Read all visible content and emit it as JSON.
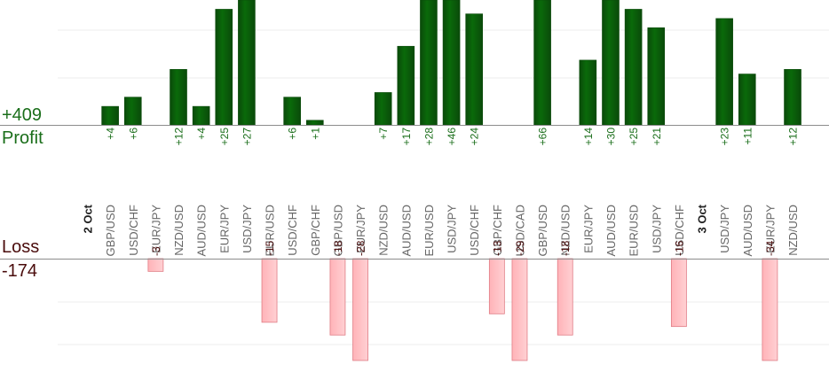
{
  "chart_data": {
    "type": "bar",
    "profit": {
      "total": "+409",
      "label": "Profit",
      "color": "#0a6a0a",
      "color_dark": "#0a4a0a"
    },
    "loss": {
      "total": "-174",
      "label": "Loss",
      "color": "#ffb3b8",
      "color_border": "#e07c85"
    },
    "categories": [
      {
        "kind": "date",
        "label": "2 Oct"
      },
      {
        "kind": "pair",
        "label": "GBP/USD",
        "value": 4
      },
      {
        "kind": "pair",
        "label": "USD/CHF",
        "value": 6
      },
      {
        "kind": "pair",
        "label": "EUR/JPY",
        "value": -3
      },
      {
        "kind": "pair",
        "label": "NZD/USD",
        "value": 12
      },
      {
        "kind": "pair",
        "label": "AUD/USD",
        "value": 4
      },
      {
        "kind": "pair",
        "label": "EUR/JPY",
        "value": 25
      },
      {
        "kind": "pair",
        "label": "USD/JPY",
        "value": 27
      },
      {
        "kind": "pair",
        "label": "EUR/USD",
        "value": -15
      },
      {
        "kind": "pair",
        "label": "USD/CHF",
        "value": 6
      },
      {
        "kind": "pair",
        "label": "GBP/CHF",
        "value": 1
      },
      {
        "kind": "pair",
        "label": "GBP/USD",
        "value": -18
      },
      {
        "kind": "pair",
        "label": "EUR/JPY",
        "value": -28
      },
      {
        "kind": "pair",
        "label": "NZD/USD",
        "value": 7
      },
      {
        "kind": "pair",
        "label": "AUD/USD",
        "value": 17
      },
      {
        "kind": "pair",
        "label": "EUR/USD",
        "value": 28
      },
      {
        "kind": "pair",
        "label": "USD/JPY",
        "value": 46
      },
      {
        "kind": "pair",
        "label": "USD/CHF",
        "value": 24
      },
      {
        "kind": "pair",
        "label": "GBP/CHF",
        "value": -13
      },
      {
        "kind": "pair",
        "label": "USD/CAD",
        "value": -29
      },
      {
        "kind": "pair",
        "label": "GBP/USD",
        "value": 66
      },
      {
        "kind": "pair",
        "label": "NZD/USD",
        "value": -18
      },
      {
        "kind": "pair",
        "label": "EUR/JPY",
        "value": 14
      },
      {
        "kind": "pair",
        "label": "AUD/USD",
        "value": 30
      },
      {
        "kind": "pair",
        "label": "EUR/USD",
        "value": 25
      },
      {
        "kind": "pair",
        "label": "USD/JPY",
        "value": 21
      },
      {
        "kind": "pair",
        "label": "USD/CHF",
        "value": -16
      },
      {
        "kind": "date",
        "label": "3 Oct"
      },
      {
        "kind": "pair",
        "label": "USD/JPY",
        "value": 23
      },
      {
        "kind": "pair",
        "label": "AUD/USD",
        "value": 11
      },
      {
        "kind": "pair",
        "label": "EUR/JPY",
        "value": -34
      },
      {
        "kind": "pair",
        "label": "NZD/USD",
        "value": 12
      }
    ],
    "profit_ylim": [
      0,
      27
    ],
    "loss_ylim": [
      0,
      24
    ],
    "grid": true
  }
}
